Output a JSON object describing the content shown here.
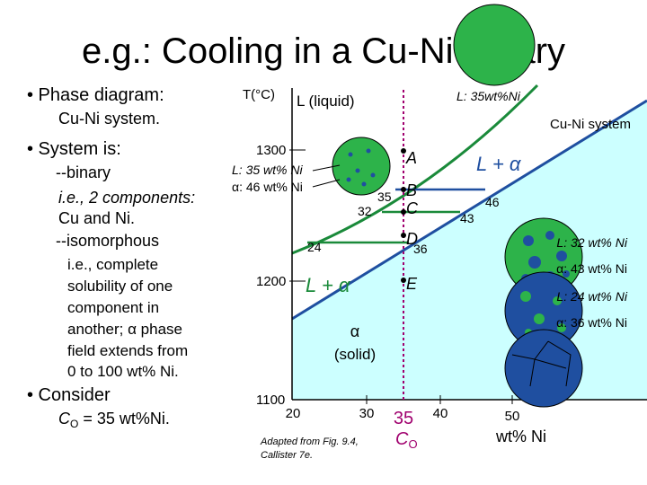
{
  "title": "e.g.:  Cooling in a Cu-Ni Binary",
  "left": {
    "b1": "• Phase diagram:",
    "b1_sub": "Cu-Ni system.",
    "b2": "• System is:",
    "binary": "--binary",
    "ie2": "i.e., 2 components:",
    "cuni": "Cu and Ni.",
    "iso": "--isomorphous",
    "iso_lines": [
      "i.e., complete",
      "solubility of one",
      "component in",
      "another; α phase",
      "field extends from",
      "0 to 100 wt% Ni."
    ],
    "b3": "• Consider",
    "c_sym": "C",
    "c_sub": "O",
    "c_rest": " = 35 wt%Ni."
  },
  "diagram": {
    "y_label": "T(°C)",
    "liquid_label": "L (liquid)",
    "top_note": "L: 35wt%Ni",
    "system_label": "Cu-Ni system",
    "solid_label_1": "α",
    "solid_label_2": "(solid)",
    "two_phase_upper": "L + α",
    "two_phase_lower": "L + α",
    "y_ticks": [
      1300,
      1200,
      1100
    ],
    "x_ticks": [
      20,
      30,
      40,
      50
    ],
    "x_label": "wt% Ni",
    "c0_value": 35,
    "c0_sym": "C",
    "c0_sub": "O",
    "points": [
      "A",
      "B",
      "C",
      "D",
      "E"
    ],
    "compositions": {
      "b_l": 35,
      "b_s": 46,
      "c_l": 32,
      "c_s": 43,
      "d_l": 24,
      "d_s": 36
    },
    "notes": {
      "b_l": "L: 35 wt% Ni",
      "b_s": "α: 46 wt% Ni",
      "c_l": "L: 32 wt% Ni",
      "c_s": "α: 43 wt% Ni",
      "d_l": "L: 24 wt% Ni",
      "d_s": "α: 36 wt% Ni"
    },
    "caption_1": "Adapted from Fig. 9.4,",
    "caption_2": "Callister 7e."
  }
}
